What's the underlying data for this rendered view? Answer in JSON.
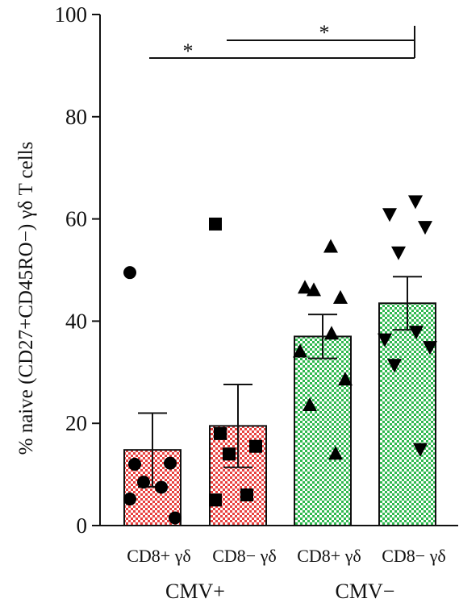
{
  "chart_data": {
    "type": "bar",
    "ylabel": "% naive (CD27+CD45RO−) γδ T cells",
    "ylim": [
      0,
      100
    ],
    "yticks": [
      0,
      20,
      40,
      60,
      80,
      100
    ],
    "categories": [
      "CD8+ γδ",
      "CD8− γδ",
      "CD8+ γδ",
      "CD8− γδ"
    ],
    "groups": [
      {
        "label": "CMV+",
        "categories": [
          0,
          1
        ]
      },
      {
        "label": "CMV−",
        "categories": [
          2,
          3
        ]
      }
    ],
    "bars": [
      {
        "mean": 14.8,
        "sem": 7.2,
        "color": "#e8413f",
        "marker": "circle",
        "points": [
          49.5,
          12.0,
          12.2,
          8.5,
          7.5,
          5.2,
          1.5
        ]
      },
      {
        "mean": 19.5,
        "sem": 8.1,
        "color": "#e8413f",
        "marker": "square",
        "points": [
          59.0,
          18.0,
          15.5,
          14.0,
          6.0,
          5.0
        ]
      },
      {
        "mean": 37.0,
        "sem": 4.3,
        "color": "#2fb84f",
        "marker": "triangle-up",
        "points": [
          54.5,
          46.5,
          44.5,
          46.0,
          37.5,
          34.0,
          28.5,
          23.5,
          14.0
        ]
      },
      {
        "mean": 43.5,
        "sem": 5.2,
        "color": "#2fb84f",
        "marker": "triangle-down",
        "points": [
          63.5,
          61.0,
          58.5,
          53.5,
          38.0,
          36.5,
          35.0,
          31.5,
          15.0
        ]
      }
    ],
    "significance": [
      {
        "from": 0,
        "to": 3,
        "label": "*"
      },
      {
        "from": 1,
        "to": 3,
        "label": "*"
      }
    ]
  }
}
